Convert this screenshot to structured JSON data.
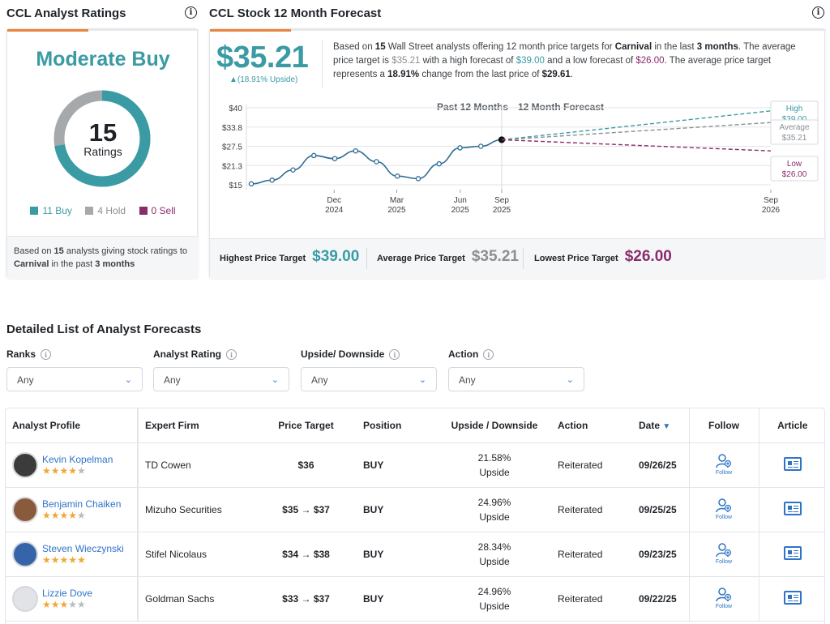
{
  "ratings_card": {
    "title": "CCL Analyst Ratings",
    "consensus": "Moderate Buy",
    "total": "15",
    "total_label": "Ratings",
    "legend": [
      {
        "label": "11 Buy",
        "color": "#3a9ba5"
      },
      {
        "label": "4 Hold",
        "color": "#a6a9ac"
      },
      {
        "label": "0 Sell",
        "color": "#8a2c6a"
      }
    ],
    "donut": {
      "buy": 11,
      "hold": 4,
      "sell": 0
    },
    "footer": {
      "p1": "Based on ",
      "count": "15",
      "p2": " analysts giving stock ratings to ",
      "company": "Carnival",
      "p3": " in the past ",
      "period": "3 months"
    }
  },
  "forecast_card": {
    "title": "CCL Stock 12 Month Forecast",
    "price": "$35.21",
    "upside": "▲(18.91% Upside)",
    "desc": {
      "t1": "Based on ",
      "count": "15",
      "t2": " Wall Street analysts offering 12 month price targets for ",
      "company": "Carnival",
      "t3": " in the last ",
      "period": "3 months",
      "t4": ". The average price target is ",
      "avg": "$35.21",
      "t5": " with a high forecast of ",
      "high": "$39.00",
      "t6": " and a low forecast of ",
      "low": "$26.00",
      "t7": ". The average price target represents a ",
      "change": "18.91%",
      "t8": " change from the last price of ",
      "last": "$29.61",
      "t9": "."
    },
    "chart_header_past": "Past 12 Months",
    "chart_header_future": "12 Month Forecast",
    "summary": {
      "high_label": "Highest Price Target",
      "high_value": "$39.00",
      "avg_label": "Average Price Target",
      "avg_value": "$35.21",
      "low_label": "Lowest Price Target",
      "low_value": "$26.00"
    }
  },
  "chart_data": {
    "type": "line",
    "y_ticks": [
      "$40",
      "$33.8",
      "$27.5",
      "$21.3",
      "$15"
    ],
    "ylim": [
      15,
      40
    ],
    "x_ticks": [
      {
        "m": "Dec",
        "y": "2024",
        "x": 3
      },
      {
        "m": "Mar",
        "y": "2025",
        "x": 6
      },
      {
        "m": "Jun",
        "y": "2025",
        "x": 9
      },
      {
        "m": "Sep",
        "y": "2025",
        "x": 12
      },
      {
        "m": "Sep",
        "y": "2026",
        "x": 24
      }
    ],
    "series": [
      {
        "x": [
          0,
          1,
          2,
          3,
          4,
          5,
          6,
          7,
          8,
          9,
          10,
          11,
          12
        ],
        "y": [
          15.3,
          16.5,
          19.8,
          24.5,
          23.5,
          26.0,
          22.5,
          17.8,
          17.0,
          21.8,
          27.0,
          27.5,
          29.61
        ],
        "color": "#2e6b95"
      }
    ],
    "forecasts": [
      {
        "label": "High",
        "value": "$39.00",
        "target": 39.0,
        "color": "#3a9ba5"
      },
      {
        "label": "Average",
        "value": "$35.21",
        "target": 35.21,
        "color": "#8a8f94"
      },
      {
        "label": "Low",
        "value": "$26.00",
        "target": 26.0,
        "color": "#8a2c6a"
      }
    ]
  },
  "detail": {
    "title": "Detailed List of Analyst Forecasts",
    "filters": [
      {
        "label": "Ranks",
        "value": "Any"
      },
      {
        "label": "Analyst Rating",
        "value": "Any"
      },
      {
        "label": "Upside/ Downside",
        "value": "Any"
      },
      {
        "label": "Action",
        "value": "Any"
      }
    ],
    "columns": {
      "profile": "Analyst Profile",
      "firm": "Expert Firm",
      "target": "Price Target",
      "position": "Position",
      "upside": "Upside / Downside",
      "action": "Action",
      "date": "Date",
      "follow": "Follow",
      "article": "Article"
    },
    "follow_text": "Follow",
    "rows": [
      {
        "name": "Kevin Kopelman",
        "stars": 4,
        "firm": "TD Cowen",
        "target": "$36",
        "position": "BUY",
        "upside": "21.58%",
        "upside_word": "Upside",
        "action": "Reiterated",
        "date": "09/26/25",
        "avatar": "#3b3b3b"
      },
      {
        "name": "Benjamin Chaiken",
        "stars": 4,
        "firm": "Mizuho Securities",
        "target": "$35 → $37",
        "position": "BUY",
        "upside": "24.96%",
        "upside_word": "Upside",
        "action": "Reiterated",
        "date": "09/25/25",
        "avatar": "#8a5a3c"
      },
      {
        "name": "Steven Wieczynski",
        "stars": 5,
        "firm": "Stifel Nicolaus",
        "target": "$34 → $38",
        "position": "BUY",
        "upside": "28.34%",
        "upside_word": "Upside",
        "action": "Reiterated",
        "date": "09/23/25",
        "avatar": "#3565a8"
      },
      {
        "name": "Lizzie Dove",
        "stars": 3,
        "firm": "Goldman Sachs",
        "target": "$33 → $37",
        "position": "BUY",
        "upside": "24.96%",
        "upside_word": "Upside",
        "action": "Reiterated",
        "date": "09/22/25",
        "avatar": "#e1e3e6"
      }
    ]
  }
}
